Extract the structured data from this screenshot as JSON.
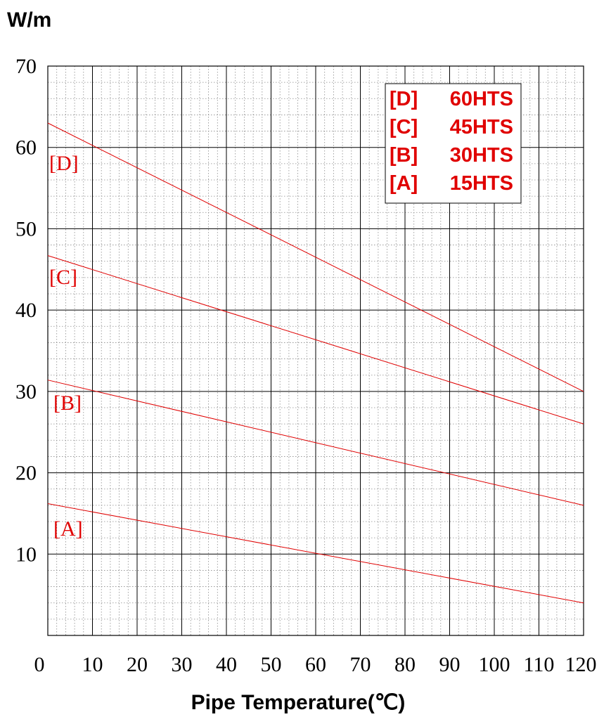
{
  "chart_data": {
    "type": "line",
    "title": "",
    "ylabel": "W/m",
    "xlabel": "Pipe Temperature(℃)",
    "xlim": [
      0,
      120
    ],
    "ylim": [
      0,
      70
    ],
    "x_ticks": [
      "0",
      "10",
      "20",
      "30",
      "40",
      "50",
      "60",
      "70",
      "80",
      "90",
      "100",
      "110",
      "120"
    ],
    "y_ticks": [
      "10",
      "20",
      "30",
      "40",
      "50",
      "60",
      "70"
    ],
    "grid": true,
    "minor_grid": true,
    "legend_placement": "top-right",
    "legend": [
      {
        "key": "[D]",
        "text": "60HTS"
      },
      {
        "key": "[C]",
        "text": "45HTS"
      },
      {
        "key": "[B]",
        "text": "30HTS"
      },
      {
        "key": "[A]",
        "text": "15HTS"
      }
    ],
    "series": [
      {
        "label": "[D]",
        "x": [
          0,
          120
        ],
        "y": [
          63.0,
          30.0
        ]
      },
      {
        "label": "[C]",
        "x": [
          0,
          120
        ],
        "y": [
          46.7,
          26.0
        ]
      },
      {
        "label": "[B]",
        "x": [
          0,
          120
        ],
        "y": [
          31.4,
          16.0
        ]
      },
      {
        "label": "[A]",
        "x": [
          0,
          120
        ],
        "y": [
          16.2,
          4.0
        ]
      }
    ],
    "colors": {
      "series": "#e00000",
      "grid_major": "#000000",
      "grid_minor": "#8a8a8a",
      "labels": "#e00000"
    }
  }
}
